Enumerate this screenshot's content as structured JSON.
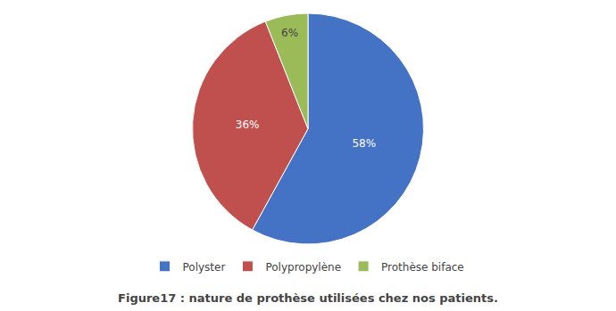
{
  "chart_data": {
    "type": "pie",
    "title": "Figure17 : nature de prothèse utilisées chez nos patients.",
    "categories": [
      "Polyster",
      "Polypropylène",
      "Prothèse biface"
    ],
    "values": [
      58,
      36,
      6
    ],
    "value_labels": [
      "58%",
      "36%",
      "6%"
    ],
    "colors": [
      "#4472C4",
      "#C0504D",
      "#9BBB59"
    ],
    "data_labels": true,
    "legend": "bottom"
  }
}
